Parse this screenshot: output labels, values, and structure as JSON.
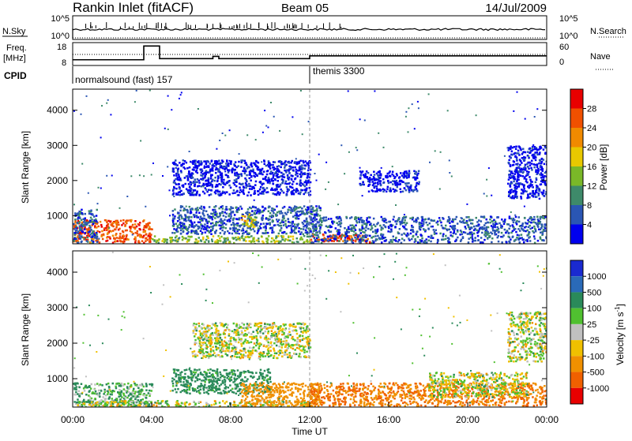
{
  "header": {
    "title": "Rankin Inlet (fitACF)",
    "beam": "Beam 05",
    "date": "14/Jul/2009"
  },
  "nsky_panel": {
    "left_label": "N.Sky",
    "left_ticks": [
      "10^5",
      "10^0"
    ],
    "right_label": "N.Search",
    "right_ticks": [
      "10^5",
      "10^0"
    ]
  },
  "freq_panel": {
    "left_label_line1": "Freq.",
    "left_label_line2": "[MHz]",
    "left_ticks": [
      "18",
      "8"
    ],
    "right_label": "Nave",
    "right_ticks": [
      "60",
      "0"
    ],
    "freq_steps": [
      {
        "t0": 0.0,
        "t1": 3.6,
        "f": 10.5
      },
      {
        "t0": 3.6,
        "t1": 4.4,
        "f": 16.5
      },
      {
        "t0": 4.4,
        "t1": 7.1,
        "f": 11.0
      },
      {
        "t0": 7.1,
        "t1": 7.4,
        "f": 12.0
      },
      {
        "t0": 7.4,
        "t1": 12.0,
        "f": 11.0
      },
      {
        "t0": 12.0,
        "t1": 24.0,
        "f": 12.2
      }
    ]
  },
  "cpid": {
    "label": "CPID",
    "mode1": "normalsound (fast) 157",
    "mode2": "themis 3300",
    "switch_hour": 12.0
  },
  "power_panel": {
    "ylabel": "Slant Range [km]",
    "yticks": [
      "1000",
      "2000",
      "3000",
      "4000"
    ],
    "colorbar_label": "Power [dB]",
    "colorbar_ticks": [
      "4",
      "8",
      "12",
      "16",
      "20",
      "24",
      "28"
    ],
    "colorbar_colors": [
      "#0000ee",
      "#2a56b4",
      "#3e8a6a",
      "#7ab828",
      "#e8c800",
      "#f08a00",
      "#f05000",
      "#e80000"
    ]
  },
  "velocity_panel": {
    "ylabel": "Slant Range [km]",
    "yticks": [
      "1000",
      "2000",
      "3000",
      "4000"
    ],
    "colorbar_label": "Velocity [m s",
    "colorbar_exp": "-1",
    "colorbar_ticks": [
      "1000",
      "500",
      "100",
      "25",
      "-25",
      "-100",
      "-500",
      "-1000"
    ],
    "colorbar_colors": [
      "#1a2ad0",
      "#2a6ab8",
      "#2a8a5a",
      "#50c030",
      "#c0c0c0",
      "#f0c000",
      "#f09000",
      "#f06000",
      "#e80000"
    ]
  },
  "time_axis": {
    "label": "Time UT",
    "ticks": [
      "00:00",
      "04:00",
      "08:00",
      "12:00",
      "16:00",
      "20:00",
      "00:00"
    ]
  },
  "chart_data": {
    "type": "heatmap",
    "x_unit": "hours UT",
    "xlim": [
      0,
      24
    ],
    "ylim": [
      200,
      4600
    ],
    "power_regions": [
      {
        "x0": 0.0,
        "x1": 4.0,
        "y0": 250,
        "y1": 900,
        "level": 28
      },
      {
        "x0": 0.0,
        "x1": 1.2,
        "y0": 250,
        "y1": 1200,
        "level": 8
      },
      {
        "x0": 4.0,
        "x1": 12.0,
        "y0": 250,
        "y1": 450,
        "level": 16
      },
      {
        "x0": 5.0,
        "x1": 12.5,
        "y0": 500,
        "y1": 1300,
        "level": 8
      },
      {
        "x0": 8.5,
        "x1": 9.2,
        "y0": 700,
        "y1": 1100,
        "level": 20
      },
      {
        "x0": 5.0,
        "x1": 12.0,
        "y0": 1600,
        "y1": 2600,
        "level": 4
      },
      {
        "x0": 12.0,
        "x1": 15.0,
        "y0": 250,
        "y1": 500,
        "level": 28
      },
      {
        "x0": 12.0,
        "x1": 24.0,
        "y0": 250,
        "y1": 1000,
        "level": 8
      },
      {
        "x0": 14.5,
        "x1": 17.5,
        "y0": 1700,
        "y1": 2300,
        "level": 4
      },
      {
        "x0": 22.0,
        "x1": 24.0,
        "y0": 1500,
        "y1": 3000,
        "level": 4
      }
    ],
    "velocity_regions": [
      {
        "x0": 0.0,
        "x1": 4.0,
        "y0": 250,
        "y1": 900,
        "vel": 100
      },
      {
        "x0": 0.0,
        "x1": 12.0,
        "y0": 200,
        "y1": 400,
        "vel": 0
      },
      {
        "x0": 5.0,
        "x1": 10.0,
        "y0": 600,
        "y1": 1300,
        "vel": 200
      },
      {
        "x0": 6.0,
        "x1": 12.0,
        "y0": 1600,
        "y1": 2600,
        "vel": 0
      },
      {
        "x0": 8.5,
        "x1": 12.5,
        "y0": 250,
        "y1": 900,
        "vel": -300
      },
      {
        "x0": 12.0,
        "x1": 24.0,
        "y0": 250,
        "y1": 900,
        "vel": -500
      },
      {
        "x0": 18.0,
        "x1": 23.0,
        "y0": 500,
        "y1": 1200,
        "vel": 0
      },
      {
        "x0": 22.0,
        "x1": 24.0,
        "y0": 1500,
        "y1": 2900,
        "vel": 0
      }
    ],
    "reference_line_x": 12.0
  }
}
